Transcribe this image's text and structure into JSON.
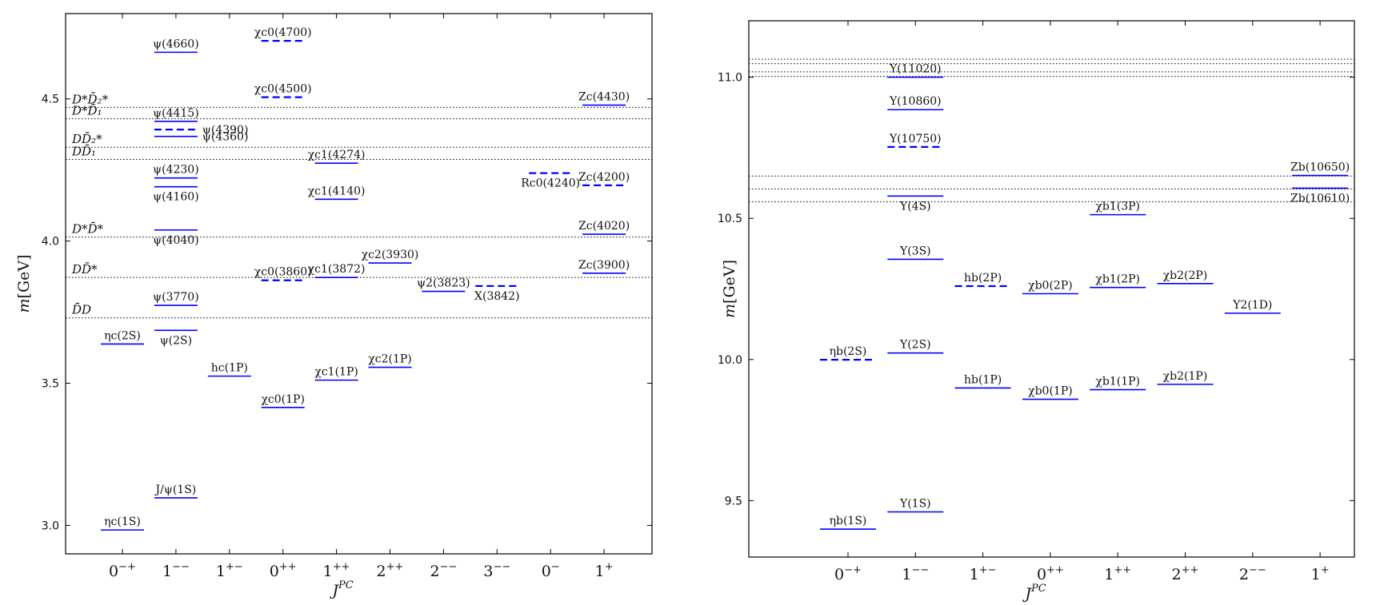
{
  "style": {
    "state_color": "#0000ff",
    "axis_color": "#000000",
    "threshold_color": "#000000"
  },
  "chart_data": [
    {
      "type": "level-diagram",
      "xlabel": "J^PC",
      "ylabel": "m[GeV]",
      "ylim": [
        2.9,
        4.8
      ],
      "yticks": [
        3.0,
        3.5,
        4.0,
        4.5
      ],
      "ytick_labels": [
        "3.0",
        "3.5",
        "4.0",
        "4.5"
      ],
      "categories": [
        "0−+",
        "1−−",
        "1+−",
        "0++",
        "1++",
        "2++",
        "2−−",
        "3−−",
        "0−",
        "1+"
      ],
      "thresholds": [
        {
          "label": "D̄D",
          "value": 3.73
        },
        {
          "label": "DD̄*",
          "value": 3.872
        },
        {
          "label": "D*D̄*",
          "value": 4.014
        },
        {
          "label": "DD̄₁",
          "value": 4.287
        },
        {
          "label": "DD̄₂*",
          "value": 4.33
        },
        {
          "label": "D*D̄₁",
          "value": 4.43
        },
        {
          "label": "D*D̄₂*",
          "value": 4.47
        }
      ],
      "states": [
        {
          "label": "ηc(1S)",
          "cat": 0,
          "mass": 2.984,
          "dashed": false,
          "label_pos": "above"
        },
        {
          "label": "ηc(2S)",
          "cat": 0,
          "mass": 3.638,
          "dashed": false,
          "label_pos": "above"
        },
        {
          "label": "J/ψ(1S)",
          "cat": 1,
          "mass": 3.097,
          "dashed": false,
          "label_pos": "above"
        },
        {
          "label": "ψ(2S)",
          "cat": 1,
          "mass": 3.686,
          "dashed": false,
          "label_pos": "below"
        },
        {
          "label": "ψ(3770)",
          "cat": 1,
          "mass": 3.774,
          "dashed": false,
          "label_pos": "above"
        },
        {
          "label": "ψ(4040)",
          "cat": 1,
          "mass": 4.039,
          "dashed": false,
          "label_pos": "below"
        },
        {
          "label": "ψ(4160)",
          "cat": 1,
          "mass": 4.191,
          "dashed": false,
          "label_pos": "below"
        },
        {
          "label": "ψ(4230)",
          "cat": 1,
          "mass": 4.222,
          "dashed": false,
          "label_pos": "above"
        },
        {
          "label": "ψ(4360)",
          "cat": 1,
          "mass": 4.368,
          "dashed": false,
          "label_pos": "right"
        },
        {
          "label": "ψ(4390)",
          "cat": 1,
          "mass": 4.392,
          "dashed": true,
          "label_pos": "right"
        },
        {
          "label": "ψ(4415)",
          "cat": 1,
          "mass": 4.421,
          "dashed": false,
          "label_pos": "above"
        },
        {
          "label": "ψ(4660)",
          "cat": 1,
          "mass": 4.664,
          "dashed": false,
          "label_pos": "above"
        },
        {
          "label": "hc(1P)",
          "cat": 2,
          "mass": 3.525,
          "dashed": false,
          "label_pos": "above"
        },
        {
          "label": "χc0(1P)",
          "cat": 3,
          "mass": 3.415,
          "dashed": false,
          "label_pos": "above"
        },
        {
          "label": "χc0(3860)",
          "cat": 3,
          "mass": 3.862,
          "dashed": true,
          "label_pos": "above"
        },
        {
          "label": "χc0(4500)",
          "cat": 3,
          "mass": 4.506,
          "dashed": true,
          "label_pos": "above"
        },
        {
          "label": "χc0(4700)",
          "cat": 3,
          "mass": 4.704,
          "dashed": true,
          "label_pos": "above"
        },
        {
          "label": "χc1(1P)",
          "cat": 4,
          "mass": 3.511,
          "dashed": false,
          "label_pos": "above"
        },
        {
          "label": "χc1(3872)",
          "cat": 4,
          "mass": 3.872,
          "dashed": false,
          "label_pos": "above"
        },
        {
          "label": "χc1(4140)",
          "cat": 4,
          "mass": 4.147,
          "dashed": false,
          "label_pos": "above"
        },
        {
          "label": "χc1(4274)",
          "cat": 4,
          "mass": 4.274,
          "dashed": false,
          "label_pos": "above"
        },
        {
          "label": "χc2(1P)",
          "cat": 5,
          "mass": 3.556,
          "dashed": false,
          "label_pos": "above"
        },
        {
          "label": "χc2(3930)",
          "cat": 5,
          "mass": 3.923,
          "dashed": false,
          "label_pos": "above"
        },
        {
          "label": "ψ2(3823)",
          "cat": 6,
          "mass": 3.823,
          "dashed": false,
          "label_pos": "above"
        },
        {
          "label": "X(3842)",
          "cat": 7,
          "mass": 3.842,
          "dashed": true,
          "label_pos": "below"
        },
        {
          "label": "Rc0(4240)",
          "cat": 8,
          "mass": 4.239,
          "dashed": true,
          "label_pos": "below"
        },
        {
          "label": "Zc(3900)",
          "cat": 9,
          "mass": 3.887,
          "dashed": false,
          "label_pos": "above"
        },
        {
          "label": "Zc(4020)",
          "cat": 9,
          "mass": 4.024,
          "dashed": false,
          "label_pos": "above"
        },
        {
          "label": "Zc(4200)",
          "cat": 9,
          "mass": 4.196,
          "dashed": true,
          "label_pos": "above"
        },
        {
          "label": "Zc(4430)",
          "cat": 9,
          "mass": 4.478,
          "dashed": false,
          "label_pos": "above"
        }
      ]
    },
    {
      "type": "level-diagram",
      "xlabel": "J^PC",
      "ylabel": "m[GeV]",
      "ylim": [
        9.3,
        11.2
      ],
      "yticks": [
        9.5,
        10.0,
        10.5,
        11.0
      ],
      "ytick_labels": [
        "9.5",
        "10.0",
        "10.5",
        "11.0"
      ],
      "categories": [
        "0−+",
        "1−−",
        "1+−",
        "0++",
        "1++",
        "2++",
        "2−−",
        "1+"
      ],
      "thresholds": [
        {
          "value": 10.559
        },
        {
          "value": 10.604
        },
        {
          "value": 10.65
        },
        {
          "value": 11.003
        },
        {
          "value": 11.019
        },
        {
          "value": 11.048
        },
        {
          "value": 11.064
        }
      ],
      "states": [
        {
          "label": "ηb(1S)",
          "cat": 0,
          "mass": 9.399,
          "dashed": false,
          "label_pos": "above"
        },
        {
          "label": "ηb(2S)",
          "cat": 0,
          "mass": 9.999,
          "dashed": true,
          "label_pos": "above"
        },
        {
          "label": "Υ(1S)",
          "cat": 1,
          "mass": 9.46,
          "dashed": false,
          "label_pos": "above"
        },
        {
          "label": "Υ(2S)",
          "cat": 1,
          "mass": 10.023,
          "dashed": false,
          "label_pos": "above"
        },
        {
          "label": "Υ(3S)",
          "cat": 1,
          "mass": 10.355,
          "dashed": false,
          "label_pos": "above"
        },
        {
          "label": "Υ(4S)",
          "cat": 1,
          "mass": 10.579,
          "dashed": false,
          "label_pos": "below"
        },
        {
          "label": "Υ(10750)",
          "cat": 1,
          "mass": 10.753,
          "dashed": true,
          "label_pos": "above"
        },
        {
          "label": "Υ(10860)",
          "cat": 1,
          "mass": 10.885,
          "dashed": false,
          "label_pos": "above"
        },
        {
          "label": "Υ(11020)",
          "cat": 1,
          "mass": 11.0,
          "dashed": false,
          "label_pos": "above"
        },
        {
          "label": "hb(1P)",
          "cat": 2,
          "mass": 9.899,
          "dashed": false,
          "label_pos": "above"
        },
        {
          "label": "hb(2P)",
          "cat": 2,
          "mass": 10.26,
          "dashed": true,
          "label_pos": "above"
        },
        {
          "label": "χb0(1P)",
          "cat": 3,
          "mass": 9.859,
          "dashed": false,
          "label_pos": "above"
        },
        {
          "label": "χb0(2P)",
          "cat": 3,
          "mass": 10.233,
          "dashed": false,
          "label_pos": "above"
        },
        {
          "label": "χb1(1P)",
          "cat": 4,
          "mass": 9.893,
          "dashed": false,
          "label_pos": "above"
        },
        {
          "label": "χb1(2P)",
          "cat": 4,
          "mass": 10.255,
          "dashed": false,
          "label_pos": "above"
        },
        {
          "label": "χb1(3P)",
          "cat": 4,
          "mass": 10.513,
          "dashed": false,
          "label_pos": "above"
        },
        {
          "label": "χb2(1P)",
          "cat": 5,
          "mass": 9.912,
          "dashed": false,
          "label_pos": "above"
        },
        {
          "label": "χb2(2P)",
          "cat": 5,
          "mass": 10.269,
          "dashed": false,
          "label_pos": "above"
        },
        {
          "label": "Υ2(1D)",
          "cat": 6,
          "mass": 10.164,
          "dashed": false,
          "label_pos": "above"
        },
        {
          "label": "Zb(10610)",
          "cat": 7,
          "mass": 10.607,
          "dashed": false,
          "label_pos": "below"
        },
        {
          "label": "Zb(10650)",
          "cat": 7,
          "mass": 10.652,
          "dashed": false,
          "label_pos": "above"
        }
      ]
    }
  ]
}
